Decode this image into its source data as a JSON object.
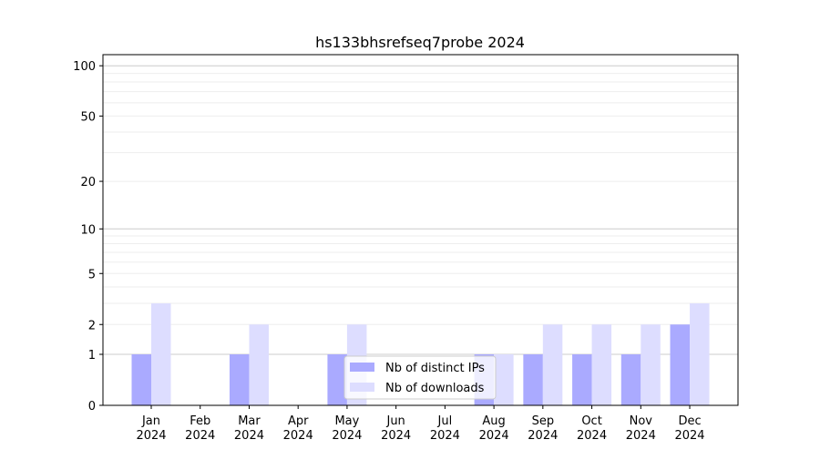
{
  "chart_data": {
    "type": "bar",
    "title": "hs133bhsrefseq7probe 2024",
    "xlabel": "",
    "ylabel": "",
    "yscale": "log(1+y)",
    "ylim": [
      0,
      116
    ],
    "yticks": [
      0,
      1,
      2,
      5,
      10,
      20,
      50,
      100
    ],
    "grid": true,
    "legend": "lower-center",
    "categories": [
      "Jan\n2024",
      "Feb\n2024",
      "Mar\n2024",
      "Apr\n2024",
      "May\n2024",
      "Jun\n2024",
      "Jul\n2024",
      "Aug\n2024",
      "Sep\n2024",
      "Oct\n2024",
      "Nov\n2024",
      "Dec\n2024"
    ],
    "series": [
      {
        "name": "Nb of distinct IPs",
        "color": "#aaaaff",
        "values": [
          1,
          0,
          1,
          0,
          1,
          0,
          0,
          1,
          1,
          1,
          1,
          2
        ]
      },
      {
        "name": "Nb of downloads",
        "color": "#ddddff",
        "values": [
          3,
          0,
          2,
          0,
          2,
          0,
          0,
          1,
          2,
          2,
          2,
          3
        ]
      }
    ]
  }
}
